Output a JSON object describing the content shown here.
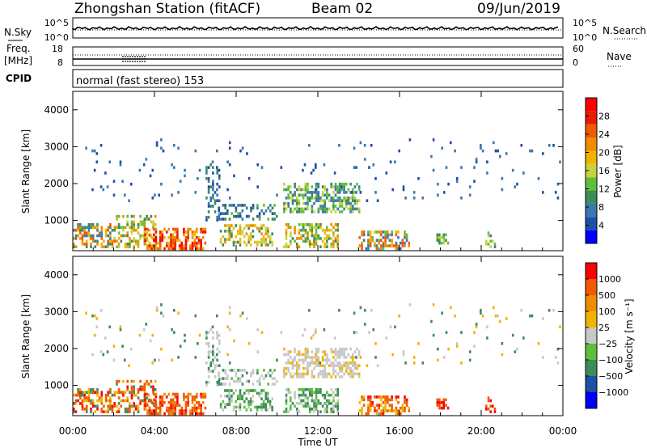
{
  "header": {
    "station": "Zhongshan Station (fitACF)",
    "beam": "Beam 02",
    "date": "09/Jun/2019"
  },
  "top_panels": {
    "nsky_label": "N.Sky",
    "nsky_ticks": [
      "10^5",
      "10^0"
    ],
    "nsearch_label": "N.Search",
    "nsearch_ticks": [
      "10^5",
      "10^0"
    ],
    "freq_label_line1": "Freq.",
    "freq_label_line2": "[MHz]",
    "freq_ticks": [
      "18",
      "8"
    ],
    "nave_label": "Nave",
    "nave_ticks": [
      "60",
      "0"
    ],
    "cpid_label": "CPID",
    "cpid_text": "normal (fast stereo) 153"
  },
  "xaxis": {
    "label": "Time UT",
    "ticks": [
      "00:00",
      "04:00",
      "08:00",
      "12:00",
      "16:00",
      "20:00",
      "00:00"
    ]
  },
  "chart_data": [
    {
      "type": "heatmap",
      "name": "power",
      "ylabel": "Slant Range [km]",
      "yticks": [
        "4000",
        "3000",
        "2000",
        "1000"
      ],
      "ylim": [
        180,
        4500
      ],
      "xlim_hours": [
        0,
        24
      ],
      "colorbar_label": "Power [dB]",
      "colorbar_ticks": [
        "28",
        "24",
        "20",
        "16",
        "12",
        "8",
        "4"
      ],
      "colors": [
        "#0000ff",
        "#1e4fa8",
        "#3a78b0",
        "#3c8c5a",
        "#5fbf3c",
        "#c8d23c",
        "#f0b400",
        "#f08c00",
        "#f05a00",
        "#e61e00",
        "#ff0000"
      ]
    },
    {
      "type": "heatmap",
      "name": "velocity",
      "ylabel": "Slant Range [km]",
      "yticks": [
        "4000",
        "3000",
        "2000",
        "1000"
      ],
      "ylim": [
        180,
        4500
      ],
      "xlim_hours": [
        0,
        24
      ],
      "colorbar_label": "Velocity [m s⁻¹]",
      "colorbar_ticks": [
        "1000",
        "500",
        "100",
        "25",
        "−25",
        "−100",
        "−500",
        "−1000"
      ],
      "colors": [
        "#0000ff",
        "#1e4fa8",
        "#3c8c5a",
        "#5fbf3c",
        "#c8c8c8",
        "#f0b400",
        "#f08c00",
        "#f05a00",
        "#ff0000"
      ]
    }
  ]
}
